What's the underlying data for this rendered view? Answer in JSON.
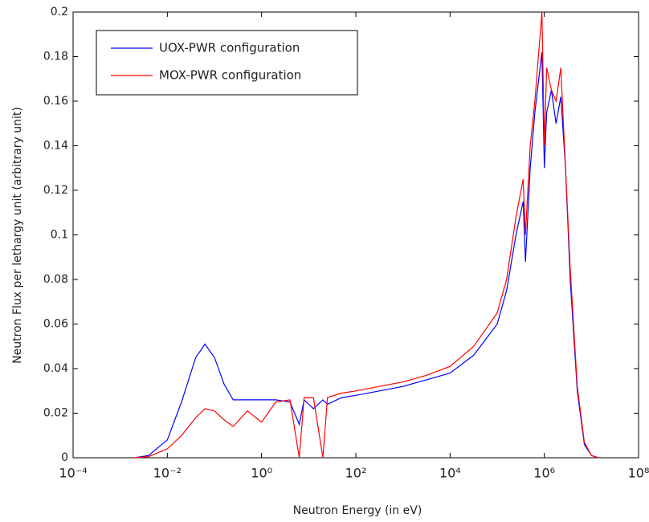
{
  "chart_data": {
    "type": "line",
    "xlabel": "Neutron Energy (in eV)",
    "ylabel": "Neutron Flux per lethargy unit (arbitrary unit)",
    "xscale": "log",
    "x": [
      0.002,
      0.004,
      0.01,
      0.02,
      0.04,
      0.063,
      0.1,
      0.16,
      0.25,
      0.5,
      1,
      2,
      4,
      6.3,
      8,
      12.6,
      20,
      25,
      50,
      100,
      316,
      1000,
      3162,
      10000,
      31623,
      100000,
      158000,
      251000,
      355000,
      398000,
      501000,
      631000,
      891000,
      1000000,
      1122000,
      1413000,
      1778000,
      2239000,
      2818000,
      3548000,
      5012000,
      7079000,
      10000000,
      14125000
    ],
    "series": [
      {
        "name": "UOX-PWR configuration",
        "color": "#0000ff",
        "values": [
          0,
          0.001,
          0.008,
          0.025,
          0.045,
          0.051,
          0.045,
          0.033,
          0.026,
          0.026,
          0.026,
          0.026,
          0.025,
          0.015,
          0.026,
          0.022,
          0.026,
          0.024,
          0.027,
          0.028,
          0.03,
          0.032,
          0.035,
          0.038,
          0.046,
          0.06,
          0.075,
          0.1,
          0.115,
          0.088,
          0.13,
          0.155,
          0.182,
          0.13,
          0.155,
          0.165,
          0.15,
          0.162,
          0.13,
          0.08,
          0.03,
          0.006,
          0.001,
          0
        ]
      },
      {
        "name": "MOX-PWR configuration",
        "color": "#ff0000",
        "values": [
          0,
          0.0005,
          0.004,
          0.01,
          0.018,
          0.022,
          0.021,
          0.017,
          0.014,
          0.021,
          0.016,
          0.025,
          0.026,
          0,
          0.027,
          0.027,
          0,
          0.027,
          0.029,
          0.03,
          0.032,
          0.034,
          0.037,
          0.041,
          0.05,
          0.065,
          0.08,
          0.108,
          0.125,
          0.1,
          0.14,
          0.16,
          0.2,
          0.14,
          0.175,
          0.165,
          0.16,
          0.175,
          0.13,
          0.085,
          0.032,
          0.007,
          0.001,
          0
        ]
      }
    ],
    "xlim": [
      0.0001,
      100000000
    ],
    "xticks": [
      {
        "value": 0.0001,
        "label": "10⁻⁴"
      },
      {
        "value": 0.01,
        "label": "10⁻²"
      },
      {
        "value": 1,
        "label": "10⁰"
      },
      {
        "value": 100,
        "label": "10²"
      },
      {
        "value": 10000,
        "label": "10⁴"
      },
      {
        "value": 1000000,
        "label": "10⁶"
      },
      {
        "value": 100000000,
        "label": "10⁸"
      }
    ],
    "ylim": [
      0,
      0.2
    ],
    "yticks": [
      0,
      0.02,
      0.04,
      0.06,
      0.08,
      0.1,
      0.12,
      0.14,
      0.16,
      0.18,
      0.2
    ],
    "legend": "upper left"
  }
}
